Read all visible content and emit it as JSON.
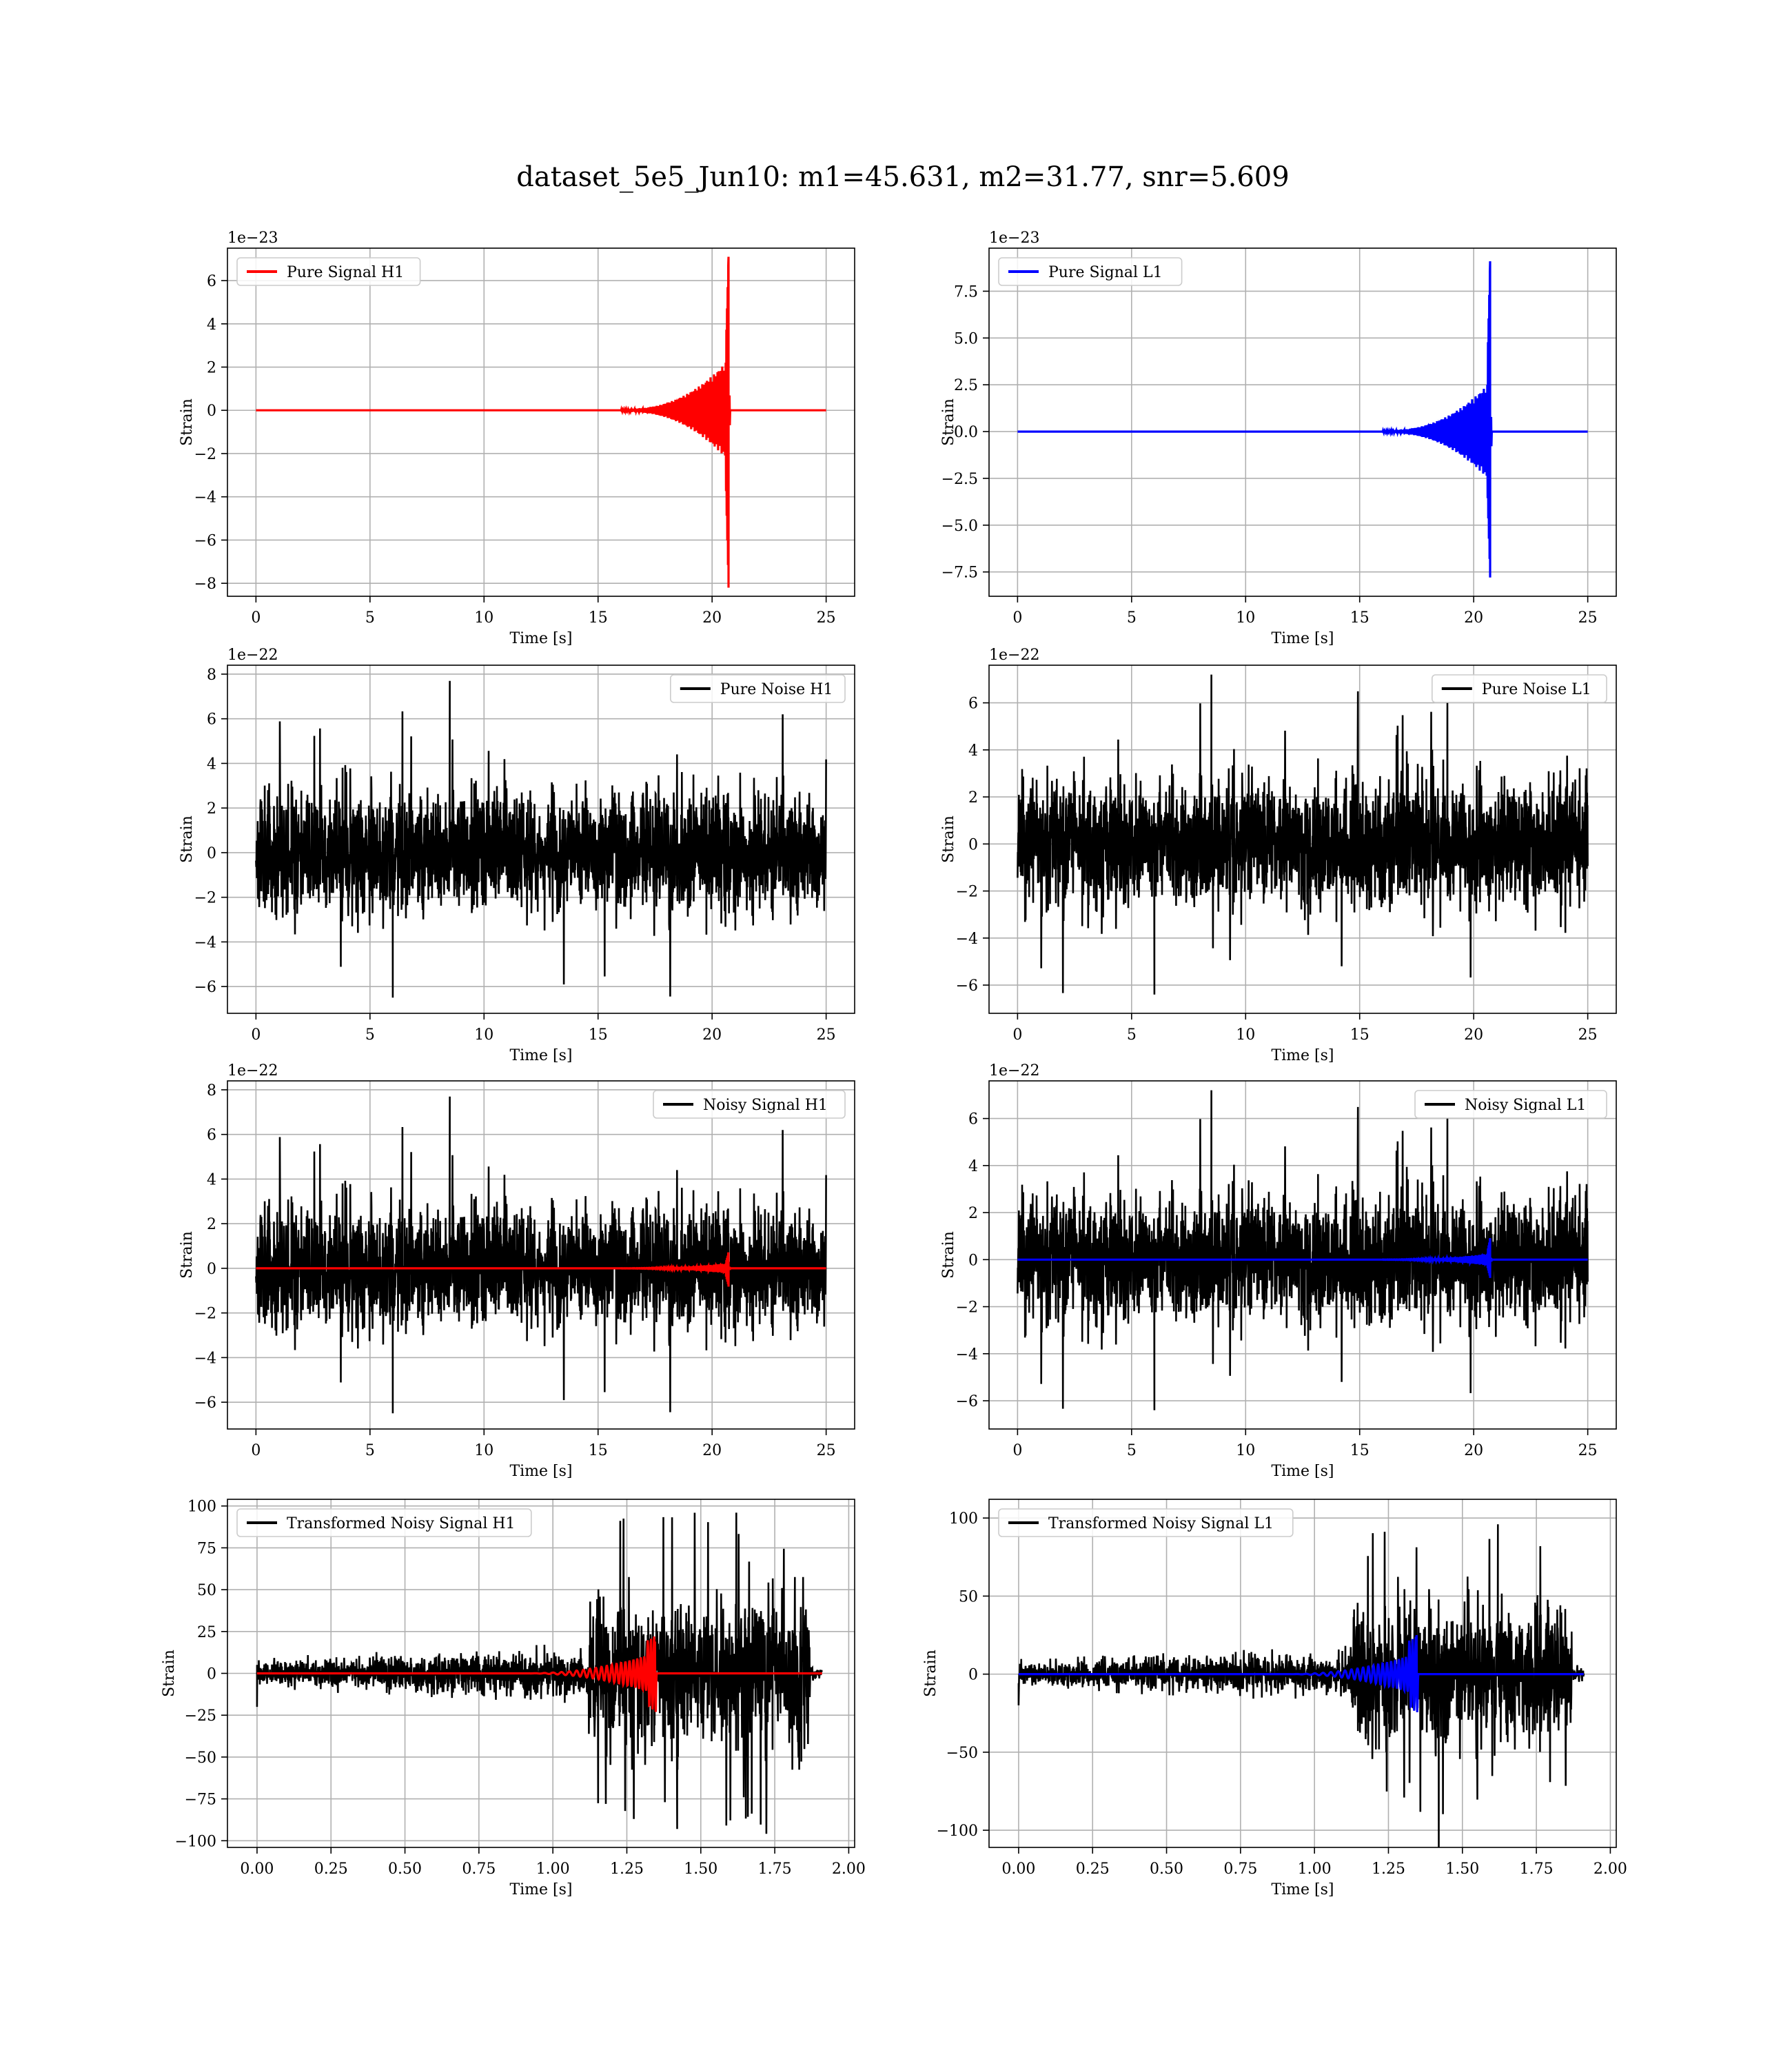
{
  "figure": {
    "title": "dataset_5e5_Jun10: m1=45.631, m2=31.77, snr=5.609"
  },
  "chart_data": [
    {
      "id": "pure-signal-h1",
      "type": "line",
      "title": "",
      "xlabel": "Time [s]",
      "ylabel": "Strain",
      "offset_label": "1e−23",
      "xlim": [
        -1.25,
        26.25
      ],
      "ylim": [
        -8.6,
        7.5
      ],
      "xticks": [
        0,
        5,
        10,
        15,
        20,
        25
      ],
      "xtick_labels": [
        "0",
        "5",
        "10",
        "15",
        "20",
        "25"
      ],
      "yticks": [
        -8,
        -6,
        -4,
        -2,
        0,
        2,
        4,
        6
      ],
      "ytick_labels": [
        "−8",
        "−6",
        "−4",
        "−2",
        "0",
        "2",
        "4",
        "6"
      ],
      "grid": true,
      "legend": "upper left",
      "series": [
        {
          "name": "Pure Signal H1",
          "color": "#ff0000",
          "kind": "chirp",
          "x_start": 0,
          "x_end": 25,
          "t_start": 16,
          "t_merge": 20.72,
          "pos_peak": 7.1,
          "neg_peak": -8.2,
          "plateau": 2.3,
          "ringdown": 0.06
        }
      ]
    },
    {
      "id": "pure-signal-l1",
      "type": "line",
      "title": "",
      "xlabel": "Time [s]",
      "ylabel": "Strain",
      "offset_label": "1e−23",
      "xlim": [
        -1.25,
        26.25
      ],
      "ylim": [
        -8.8,
        9.8
      ],
      "xticks": [
        0,
        5,
        10,
        15,
        20,
        25
      ],
      "xtick_labels": [
        "0",
        "5",
        "10",
        "15",
        "20",
        "25"
      ],
      "yticks": [
        -7.5,
        -5.0,
        -2.5,
        0.0,
        2.5,
        5.0,
        7.5
      ],
      "ytick_labels": [
        "−7.5",
        "−5.0",
        "−2.5",
        "0.0",
        "2.5",
        "5.0",
        "7.5"
      ],
      "grid": true,
      "legend": "upper left",
      "series": [
        {
          "name": "Pure Signal L1",
          "color": "#0000ff",
          "kind": "chirp",
          "x_start": 0,
          "x_end": 25,
          "t_start": 16,
          "t_merge": 20.72,
          "pos_peak": 9.1,
          "neg_peak": -7.8,
          "plateau": 2.6,
          "ringdown": 0.06
        }
      ]
    },
    {
      "id": "pure-noise-h1",
      "type": "line",
      "title": "",
      "xlabel": "Time [s]",
      "ylabel": "Strain",
      "offset_label": "1e−22",
      "xlim": [
        -1.25,
        26.25
      ],
      "ylim": [
        -7.2,
        8.4
      ],
      "xticks": [
        0,
        5,
        10,
        15,
        20,
        25
      ],
      "xtick_labels": [
        "0",
        "5",
        "10",
        "15",
        "20",
        "25"
      ],
      "yticks": [
        -6,
        -4,
        -2,
        0,
        2,
        4,
        6,
        8
      ],
      "ytick_labels": [
        "−6",
        "−4",
        "−2",
        "0",
        "2",
        "4",
        "6",
        "8"
      ],
      "grid": true,
      "legend": "upper right",
      "series": [
        {
          "name": "Pure Noise H1",
          "color": "#000000",
          "kind": "noise",
          "x_start": 0,
          "x_end": 25,
          "sigma": 1.3,
          "band": 3.9,
          "max": 7.7,
          "min": -6.5,
          "seed": 11
        }
      ]
    },
    {
      "id": "pure-noise-l1",
      "type": "line",
      "title": "",
      "xlabel": "Time [s]",
      "ylabel": "Strain",
      "offset_label": "1e−22",
      "xlim": [
        -1.25,
        26.25
      ],
      "ylim": [
        -7.2,
        7.6
      ],
      "xticks": [
        0,
        5,
        10,
        15,
        20,
        25
      ],
      "xtick_labels": [
        "0",
        "5",
        "10",
        "15",
        "20",
        "25"
      ],
      "yticks": [
        -6,
        -4,
        -2,
        0,
        2,
        4,
        6
      ],
      "ytick_labels": [
        "−6",
        "−4",
        "−2",
        "0",
        "2",
        "4",
        "6"
      ],
      "grid": true,
      "legend": "upper right",
      "series": [
        {
          "name": "Pure Noise L1",
          "color": "#000000",
          "kind": "noise",
          "x_start": 0,
          "x_end": 25,
          "sigma": 1.3,
          "band": 3.9,
          "max": 7.2,
          "min": -6.4,
          "seed": 23
        }
      ]
    },
    {
      "id": "noisy-signal-h1",
      "type": "line",
      "title": "",
      "xlabel": "Time [s]",
      "ylabel": "Strain",
      "offset_label": "1e−22",
      "xlim": [
        -1.25,
        26.25
      ],
      "ylim": [
        -7.2,
        8.4
      ],
      "xticks": [
        0,
        5,
        10,
        15,
        20,
        25
      ],
      "xtick_labels": [
        "0",
        "5",
        "10",
        "15",
        "20",
        "25"
      ],
      "yticks": [
        -6,
        -4,
        -2,
        0,
        2,
        4,
        6,
        8
      ],
      "ytick_labels": [
        "−6",
        "−4",
        "−2",
        "0",
        "2",
        "4",
        "6",
        "8"
      ],
      "grid": true,
      "legend": "upper right",
      "series": [
        {
          "name": "Noisy Signal H1",
          "color": "#000000",
          "kind": "noise",
          "x_start": 0,
          "x_end": 25,
          "sigma": 1.3,
          "band": 3.9,
          "max": 7.7,
          "min": -6.5,
          "seed": 11
        },
        {
          "name": "",
          "color": "#ff0000",
          "kind": "chirp",
          "x_start": 0,
          "x_end": 25,
          "t_start": 16,
          "t_merge": 20.72,
          "pos_peak": 0.71,
          "neg_peak": -0.82,
          "plateau": 0.23,
          "ringdown": 0.06
        }
      ]
    },
    {
      "id": "noisy-signal-l1",
      "type": "line",
      "title": "",
      "xlabel": "Time [s]",
      "ylabel": "Strain",
      "offset_label": "1e−22",
      "xlim": [
        -1.25,
        26.25
      ],
      "ylim": [
        -7.2,
        7.6
      ],
      "xticks": [
        0,
        5,
        10,
        15,
        20,
        25
      ],
      "xtick_labels": [
        "0",
        "5",
        "10",
        "15",
        "20",
        "25"
      ],
      "yticks": [
        -6,
        -4,
        -2,
        0,
        2,
        4,
        6
      ],
      "ytick_labels": [
        "−6",
        "−4",
        "−2",
        "0",
        "2",
        "4",
        "6"
      ],
      "grid": true,
      "legend": "upper right",
      "series": [
        {
          "name": "Noisy Signal L1",
          "color": "#000000",
          "kind": "noise",
          "x_start": 0,
          "x_end": 25,
          "sigma": 1.3,
          "band": 3.9,
          "max": 7.2,
          "min": -6.4,
          "seed": 23
        },
        {
          "name": "",
          "color": "#0000ff",
          "kind": "chirp",
          "x_start": 0,
          "x_end": 25,
          "t_start": 16,
          "t_merge": 20.72,
          "pos_peak": 0.91,
          "neg_peak": -0.78,
          "plateau": 0.26,
          "ringdown": 0.06
        }
      ]
    },
    {
      "id": "transformed-noisy-signal-h1",
      "type": "line",
      "title": "",
      "xlabel": "Time [s]",
      "ylabel": "Strain",
      "offset_label": "",
      "xlim": [
        -0.1,
        2.02
      ],
      "ylim": [
        -104,
        104
      ],
      "xticks": [
        0,
        0.25,
        0.5,
        0.75,
        1.0,
        1.25,
        1.5,
        1.75,
        2.0
      ],
      "xtick_labels": [
        "0.00",
        "0.25",
        "0.50",
        "0.75",
        "1.00",
        "1.25",
        "1.50",
        "1.75",
        "2.00"
      ],
      "yticks": [
        -100,
        -75,
        -50,
        -25,
        0,
        25,
        50,
        75,
        100
      ],
      "ytick_labels": [
        "−100",
        "−75",
        "−50",
        "−25",
        "0",
        "25",
        "50",
        "75",
        "100"
      ],
      "grid": true,
      "legend": "upper left",
      "series": [
        {
          "name": "Transformed Noisy Signal H1",
          "color": "#000000",
          "kind": "whitened",
          "x_start": 0,
          "x_end": 1.91,
          "low_amp": 6,
          "high_amp": 36,
          "step_t": 1.12,
          "end_t": 1.87,
          "max": 96,
          "min": -93,
          "seed": 31
        },
        {
          "name": "",
          "color": "#ff0000",
          "kind": "chirp_whitened",
          "x_start": 0,
          "x_end": 1.91,
          "t_start": 0.9,
          "t_merge": 1.35,
          "peak": 19,
          "trough": -23
        }
      ]
    },
    {
      "id": "transformed-noisy-signal-l1",
      "type": "line",
      "title": "",
      "xlabel": "Time [s]",
      "ylabel": "Strain",
      "offset_label": "",
      "xlim": [
        -0.1,
        2.02
      ],
      "ylim": [
        -111,
        112
      ],
      "xticks": [
        0,
        0.25,
        0.5,
        0.75,
        1.0,
        1.25,
        1.5,
        1.75,
        2.0
      ],
      "xtick_labels": [
        "0.00",
        "0.25",
        "0.50",
        "0.75",
        "1.00",
        "1.25",
        "1.50",
        "1.75",
        "2.00"
      ],
      "yticks": [
        -100,
        -50,
        0,
        50,
        100
      ],
      "ytick_labels": [
        "−100",
        "−50",
        "0",
        "50",
        "100"
      ],
      "grid": true,
      "legend": "upper left",
      "series": [
        {
          "name": "Transformed Noisy Signal L1",
          "color": "#000000",
          "kind": "whitened",
          "x_start": 0,
          "x_end": 1.91,
          "low_amp": 6,
          "high_amp": 34,
          "step_t": 1.12,
          "end_t": 1.87,
          "max": 96,
          "min": -111,
          "seed": 47
        },
        {
          "name": "",
          "color": "#0000ff",
          "kind": "chirp_whitened",
          "x_start": 0,
          "x_end": 1.91,
          "t_start": 0.9,
          "t_merge": 1.35,
          "peak": 25,
          "trough": -20
        }
      ]
    }
  ]
}
